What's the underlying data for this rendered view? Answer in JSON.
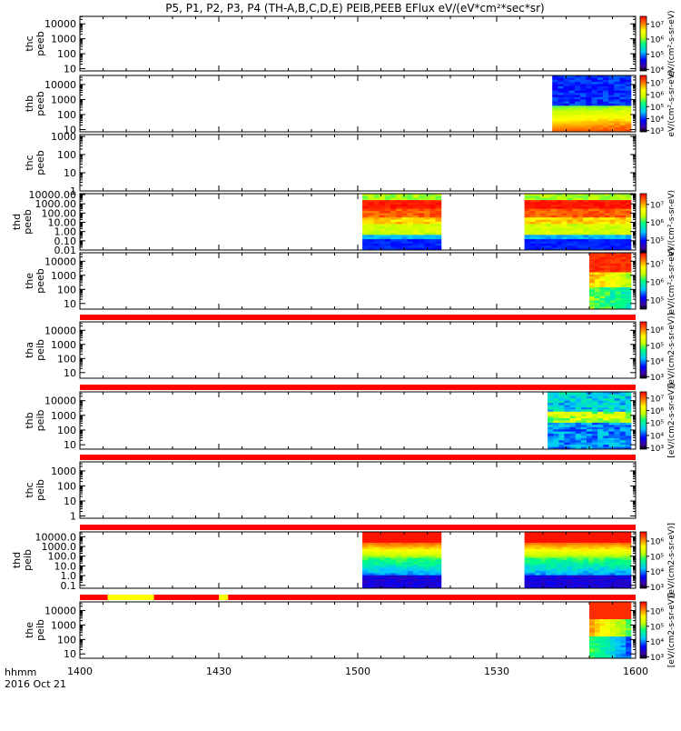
{
  "chart_data": {
    "type": "heatmap",
    "title": "P5, P1, P2, P3, P4 (TH-A,B,C,D,E) PEIB,PEEB EFlux eV/(eV*cm²*sec*sr)",
    "x": {
      "tick_labels": [
        "1400",
        "1430",
        "1500",
        "1530",
        "1600"
      ],
      "tick_minutes": [
        0,
        30,
        60,
        90,
        120
      ],
      "range_minutes": [
        0,
        120
      ],
      "annotation_label": "hhmm",
      "annotation_date": "2016 Oct 21"
    },
    "colorbar_labels": {
      "electron": "eV/(cm²-s-sr-eV)",
      "ion": "[eV/(cm2-s-sr-eV)]"
    },
    "panels": [
      {
        "name": "thc peeb",
        "line1": "thc",
        "line2": "peeb",
        "y_ticks": [
          "10",
          "100",
          "1000",
          "10000"
        ],
        "y_log_range": [
          0.85,
          4.5
        ],
        "cbar_ticks": [
          "10⁴",
          "10⁵",
          "10⁶",
          "10⁷"
        ],
        "cbar_log_range": [
          3.9,
          7.5
        ],
        "blocks": []
      },
      {
        "name": "thb peeb",
        "line1": "thb",
        "line2": "peeb",
        "y_ticks": [
          "10",
          "100",
          "1000",
          "10000"
        ],
        "y_log_range": [
          0.85,
          4.6
        ],
        "cbar_ticks": [
          "10³",
          "10⁴",
          "10⁵",
          "10⁶",
          "10⁷"
        ],
        "cbar_log_range": [
          2.9,
          7.6
        ],
        "blocks": [
          {
            "t0": 102,
            "t1": 119,
            "profile": "electron"
          }
        ]
      },
      {
        "name": "thc peeb (2)",
        "line1": "thc",
        "line2": "peeb",
        "y_ticks": [
          "1",
          "10",
          "100",
          "1000"
        ],
        "y_log_range": [
          0,
          3.1
        ],
        "cbar_ticks": [],
        "cbar_log_range": [
          0,
          1
        ],
        "blocks": []
      },
      {
        "name": "thd peeb",
        "line1": "thd",
        "line2": "peeb",
        "y_ticks": [
          "0.01",
          "0.10",
          "1.00",
          "10.00",
          "100.00",
          "1000.00",
          "10000.00"
        ],
        "y_log_range": [
          -2,
          4.1
        ],
        "cbar_ticks": [
          "10⁵",
          "10⁶",
          "10⁷"
        ],
        "cbar_log_range": [
          4.3,
          7.6
        ],
        "blocks": [
          {
            "t0": 61,
            "t1": 78,
            "profile": "thd_e"
          },
          {
            "t0": 96,
            "t1": 119,
            "profile": "thd_e"
          }
        ]
      },
      {
        "name": "the peeb",
        "line1": "the",
        "line2": "peeb",
        "y_ticks": [
          "10",
          "100",
          "1000",
          "10000"
        ],
        "y_log_range": [
          0.6,
          4.6
        ],
        "cbar_ticks": [
          "10⁵",
          "10⁶",
          "10⁷"
        ],
        "cbar_log_range": [
          4.5,
          7.6
        ],
        "blocks": [
          {
            "t0": 110,
            "t1": 119,
            "profile": "the_e"
          }
        ]
      },
      {
        "name": "tha peib",
        "line1": "tha",
        "line2": "peib",
        "y_ticks": [
          "10",
          "100",
          "1000",
          "10000"
        ],
        "y_log_range": [
          0.6,
          4.6
        ],
        "cbar_ticks": [
          "10³",
          "10⁴",
          "10⁵",
          "10⁶"
        ],
        "cbar_log_range": [
          2.9,
          6.5
        ],
        "blocks": []
      },
      {
        "name": "thb peib",
        "line1": "thb",
        "line2": "peib",
        "y_ticks": [
          "10",
          "100",
          "1000",
          "10000"
        ],
        "y_log_range": [
          0.7,
          4.6
        ],
        "cbar_ticks": [
          "10³",
          "10⁴",
          "10⁵",
          "10⁶",
          "10⁷"
        ],
        "cbar_log_range": [
          2.9,
          7.5
        ],
        "blocks": [
          {
            "t0": 101,
            "t1": 119,
            "profile": "ion"
          }
        ]
      },
      {
        "name": "thc peib",
        "line1": "thc",
        "line2": "peib",
        "y_ticks": [
          "1",
          "10",
          "100",
          "1000"
        ],
        "y_log_range": [
          -0.15,
          3.6
        ],
        "cbar_ticks": [],
        "cbar_log_range": [
          0,
          1
        ],
        "blocks": []
      },
      {
        "name": "thd peib",
        "line1": "thd",
        "line2": "peib",
        "y_ticks": [
          "0.1",
          "1.0",
          "10.0",
          "100.0",
          "1000.0",
          "10000.0"
        ],
        "y_log_range": [
          -1.3,
          4.5
        ],
        "cbar_ticks": [
          "10³",
          "10⁴",
          "10⁵",
          "10⁶"
        ],
        "cbar_log_range": [
          2.9,
          6.6
        ],
        "blocks": [
          {
            "t0": 61,
            "t1": 78,
            "profile": "thd_i"
          },
          {
            "t0": 96,
            "t1": 119,
            "profile": "thd_i"
          }
        ]
      },
      {
        "name": "the peib",
        "line1": "the",
        "line2": "peib",
        "y_ticks": [
          "10",
          "100",
          "1000",
          "10000"
        ],
        "y_log_range": [
          0.7,
          4.6
        ],
        "cbar_ticks": [
          "10³",
          "10⁴",
          "10⁵",
          "10⁶"
        ],
        "cbar_log_range": [
          2.9,
          6.6
        ],
        "blocks": [
          {
            "t0": 110,
            "t1": 119,
            "profile": "the_i"
          }
        ]
      }
    ],
    "status_bars": [
      {
        "name": "status-bar-the-peeb",
        "segments": [
          {
            "t0": 0,
            "t1": 120,
            "color": "#ff0000"
          }
        ]
      },
      {
        "name": "status-bar-tha-peib",
        "segments": [
          {
            "t0": 0,
            "t1": 120,
            "color": "#ff0000"
          }
        ]
      },
      {
        "name": "status-bar-thb-peib",
        "segments": [
          {
            "t0": 0,
            "t1": 120,
            "color": "#ff0000"
          }
        ]
      },
      {
        "name": "status-bar-thc-peib",
        "segments": [
          {
            "t0": 0,
            "t1": 120,
            "color": "#ff0000"
          }
        ]
      },
      {
        "name": "status-bar-thd-peib",
        "segments": [
          {
            "t0": 0,
            "t1": 6,
            "color": "#ff0000"
          },
          {
            "t0": 6,
            "t1": 16,
            "color": "#ffff00"
          },
          {
            "t0": 16,
            "t1": 30,
            "color": "#ff0000"
          },
          {
            "t0": 30,
            "t1": 32,
            "color": "#ffff00"
          },
          {
            "t0": 32,
            "t1": 120,
            "color": "#ff0000"
          }
        ]
      }
    ]
  }
}
